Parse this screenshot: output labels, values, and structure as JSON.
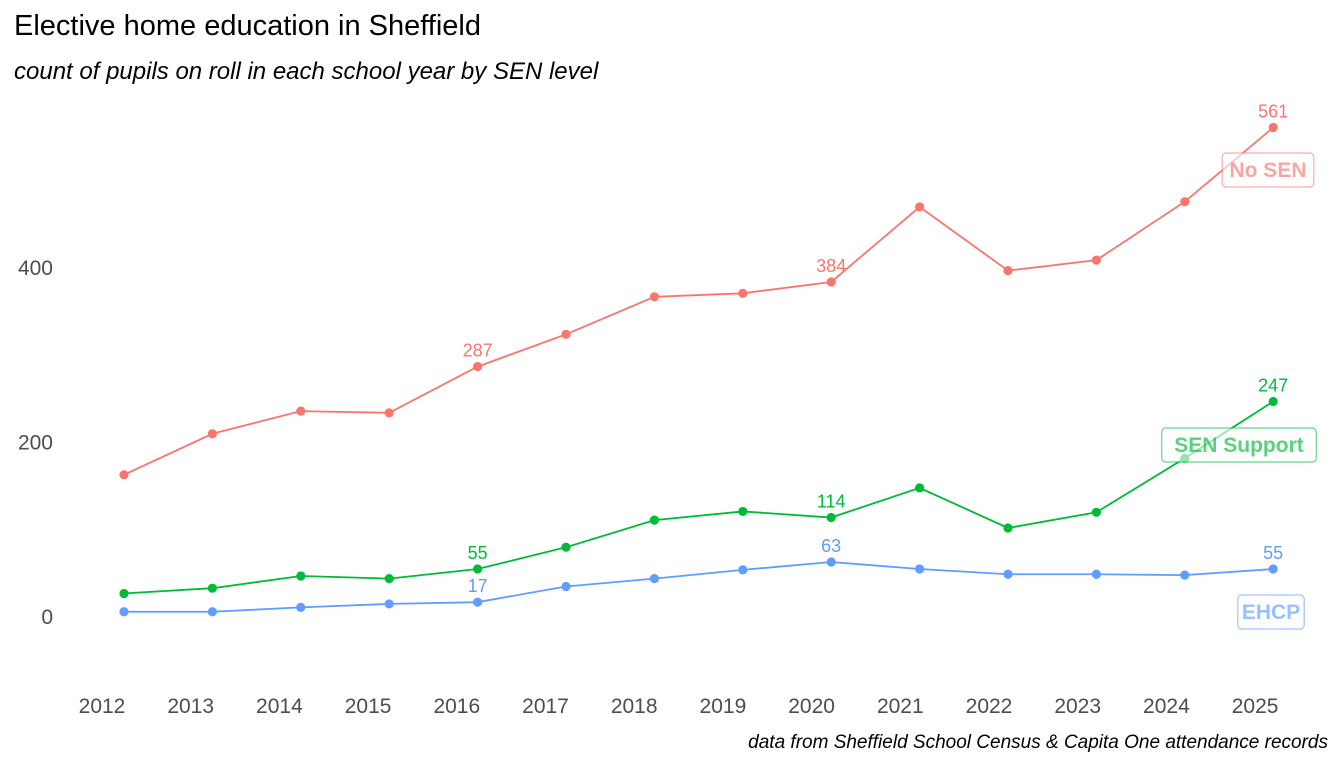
{
  "title": "Elective home education in Sheffield",
  "subtitle": "count of pupils on roll in each school year by SEN level",
  "caption": "data from Sheffield School Census & Capita One attendance records",
  "chart_data": {
    "type": "line",
    "title": "Elective home education in Sheffield",
    "subtitle": "count of pupils on roll in each school year by SEN level",
    "xlabel": "",
    "ylabel": "",
    "x": [
      2012,
      2013,
      2014,
      2015,
      2016,
      2017,
      2018,
      2019,
      2020,
      2021,
      2022,
      2023,
      2024,
      2025
    ],
    "y_ticks": [
      0,
      200,
      400
    ],
    "ylim": [
      -75,
      590
    ],
    "grid": false,
    "series": [
      {
        "name": "No SEN",
        "color": "#F8766D",
        "values": [
          163,
          210,
          236,
          234,
          287,
          324,
          367,
          371,
          384,
          470,
          397,
          409,
          476,
          561
        ],
        "labels": {
          "2016": "287",
          "2020": "384",
          "2025": "561"
        }
      },
      {
        "name": "SEN Support",
        "color": "#00BA38",
        "values": [
          27,
          33,
          47,
          44,
          55,
          80,
          111,
          121,
          114,
          148,
          102,
          120,
          182,
          247
        ],
        "labels": {
          "2016": "55",
          "2020": "114",
          "2025": "247"
        }
      },
      {
        "name": "EHCP",
        "color": "#619CFF",
        "values": [
          6,
          6,
          11,
          15,
          17,
          35,
          44,
          54,
          63,
          55,
          49,
          49,
          48,
          55
        ],
        "labels": {
          "2016": "17",
          "2020": "63",
          "2025": "55"
        }
      }
    ],
    "series_labels": [
      {
        "name": "No SEN",
        "color": "#F8766D"
      },
      {
        "name": "SEN Support",
        "color": "#00BA38"
      },
      {
        "name": "EHCP",
        "color": "#619CFF"
      }
    ]
  }
}
